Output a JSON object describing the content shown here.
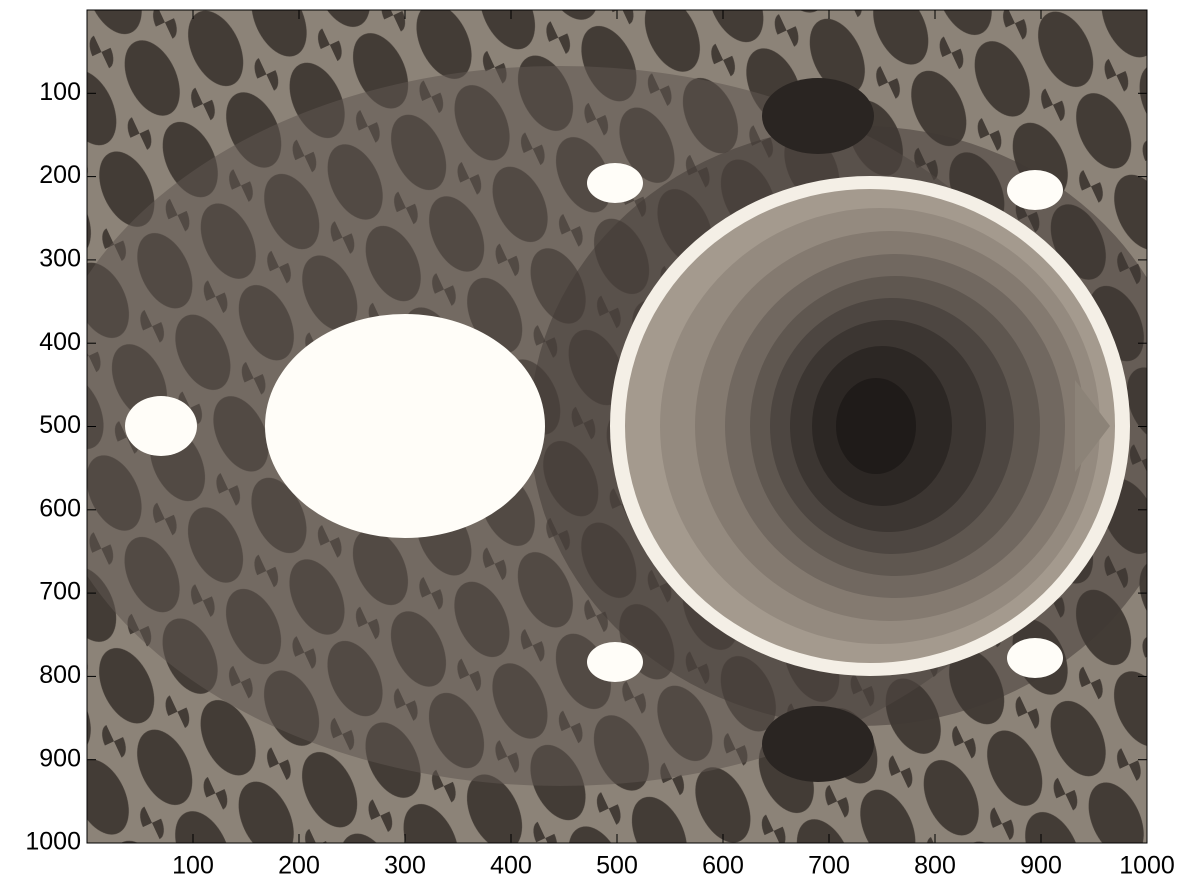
{
  "chart_data": {
    "type": "image",
    "xlim": [
      0,
      1000
    ],
    "ylim": [
      0,
      1000
    ],
    "ydir": "reverse",
    "xticks": [
      100,
      200,
      300,
      400,
      500,
      600,
      700,
      800,
      900,
      1000
    ],
    "yticks": [
      100,
      200,
      300,
      400,
      500,
      600,
      700,
      800,
      900,
      1000
    ]
  }
}
